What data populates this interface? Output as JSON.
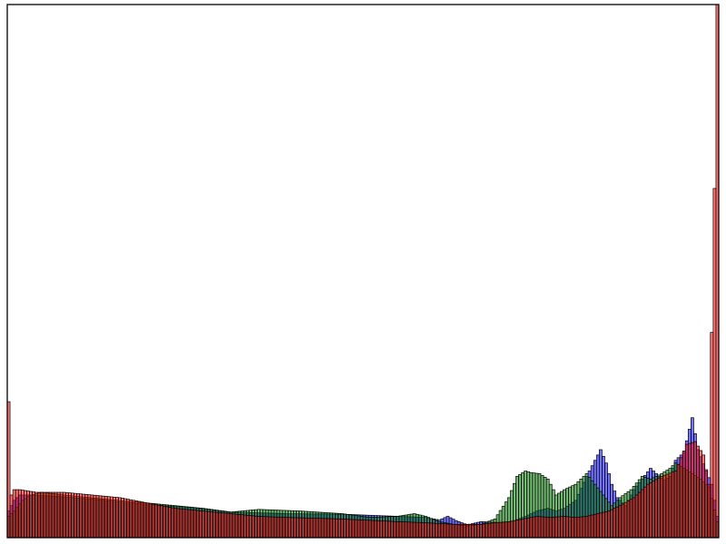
{
  "chart_data": {
    "type": "bar",
    "subtype": "overlaid-histogram",
    "title": "",
    "xlabel": "",
    "ylabel": "",
    "xlim": [
      0,
      256
    ],
    "ylim": [
      0,
      1000
    ],
    "grid": false,
    "legend": "none",
    "ticks_visible": false,
    "bins": 256,
    "bar_opacity": 0.55,
    "series": [
      {
        "color": "#0000ff",
        "points": [
          [
            0,
            50
          ],
          [
            1,
            60
          ],
          [
            2,
            70
          ],
          [
            4,
            80
          ],
          [
            8,
            80
          ],
          [
            16,
            78
          ],
          [
            30,
            72
          ],
          [
            50,
            62
          ],
          [
            65,
            57
          ],
          [
            80,
            48
          ],
          [
            100,
            45
          ],
          [
            120,
            44
          ],
          [
            140,
            40
          ],
          [
            150,
            38
          ],
          [
            152,
            36
          ],
          [
            155,
            33
          ],
          [
            158,
            40
          ],
          [
            161,
            32
          ],
          [
            165,
            24
          ],
          [
            170,
            30
          ],
          [
            178,
            28
          ],
          [
            182,
            32
          ],
          [
            186,
            40
          ],
          [
            190,
            50
          ],
          [
            194,
            55
          ],
          [
            197,
            50
          ],
          [
            200,
            55
          ],
          [
            204,
            70
          ],
          [
            208,
            115
          ],
          [
            211,
            145
          ],
          [
            213,
            165
          ],
          [
            215,
            140
          ],
          [
            217,
            100
          ],
          [
            219,
            75
          ],
          [
            222,
            60
          ],
          [
            225,
            90
          ],
          [
            228,
            110
          ],
          [
            231,
            130
          ],
          [
            234,
            115
          ],
          [
            236,
            108
          ],
          [
            238,
            115
          ],
          [
            240,
            145
          ],
          [
            243,
            160
          ],
          [
            246,
            225
          ],
          [
            248,
            165
          ],
          [
            251,
            125
          ],
          [
            253,
            100
          ],
          [
            255,
            40
          ]
        ]
      },
      {
        "color": "#008000",
        "points": [
          [
            0,
            40
          ],
          [
            2,
            50
          ],
          [
            5,
            70
          ],
          [
            8,
            80
          ],
          [
            12,
            85
          ],
          [
            20,
            80
          ],
          [
            35,
            72
          ],
          [
            50,
            65
          ],
          [
            70,
            55
          ],
          [
            80,
            48
          ],
          [
            90,
            53
          ],
          [
            105,
            50
          ],
          [
            120,
            45
          ],
          [
            130,
            38
          ],
          [
            140,
            40
          ],
          [
            146,
            45
          ],
          [
            150,
            40
          ],
          [
            155,
            30
          ],
          [
            160,
            25
          ],
          [
            165,
            22
          ],
          [
            170,
            25
          ],
          [
            175,
            35
          ],
          [
            180,
            75
          ],
          [
            183,
            115
          ],
          [
            186,
            125
          ],
          [
            188,
            122
          ],
          [
            191,
            120
          ],
          [
            194,
            110
          ],
          [
            197,
            80
          ],
          [
            200,
            90
          ],
          [
            204,
            100
          ],
          [
            208,
            120
          ],
          [
            211,
            100
          ],
          [
            214,
            80
          ],
          [
            217,
            60
          ],
          [
            220,
            75
          ],
          [
            224,
            90
          ],
          [
            228,
            115
          ],
          [
            231,
            110
          ],
          [
            235,
            120
          ],
          [
            238,
            130
          ],
          [
            240,
            140
          ],
          [
            243,
            130
          ],
          [
            246,
            120
          ],
          [
            249,
            110
          ],
          [
            252,
            95
          ],
          [
            255,
            30
          ]
        ]
      },
      {
        "color": "#ff0000",
        "points": [
          [
            0,
            255
          ],
          [
            1,
            80
          ],
          [
            2,
            90
          ],
          [
            4,
            90
          ],
          [
            10,
            85
          ],
          [
            20,
            85
          ],
          [
            30,
            80
          ],
          [
            40,
            75
          ],
          [
            50,
            65
          ],
          [
            60,
            55
          ],
          [
            70,
            50
          ],
          [
            80,
            45
          ],
          [
            90,
            40
          ],
          [
            100,
            38
          ],
          [
            120,
            35
          ],
          [
            140,
            30
          ],
          [
            150,
            28
          ],
          [
            160,
            25
          ],
          [
            165,
            25
          ],
          [
            170,
            25
          ],
          [
            175,
            28
          ],
          [
            180,
            30
          ],
          [
            185,
            35
          ],
          [
            190,
            40
          ],
          [
            195,
            38
          ],
          [
            200,
            40
          ],
          [
            204,
            38
          ],
          [
            208,
            40
          ],
          [
            212,
            45
          ],
          [
            216,
            50
          ],
          [
            220,
            60
          ],
          [
            225,
            75
          ],
          [
            230,
            100
          ],
          [
            235,
            115
          ],
          [
            240,
            125
          ],
          [
            244,
            175
          ],
          [
            247,
            180
          ],
          [
            250,
            155
          ],
          [
            252,
            100
          ],
          [
            253,
            385
          ],
          [
            254,
            655
          ],
          [
            255,
            1000
          ]
        ]
      }
    ]
  }
}
